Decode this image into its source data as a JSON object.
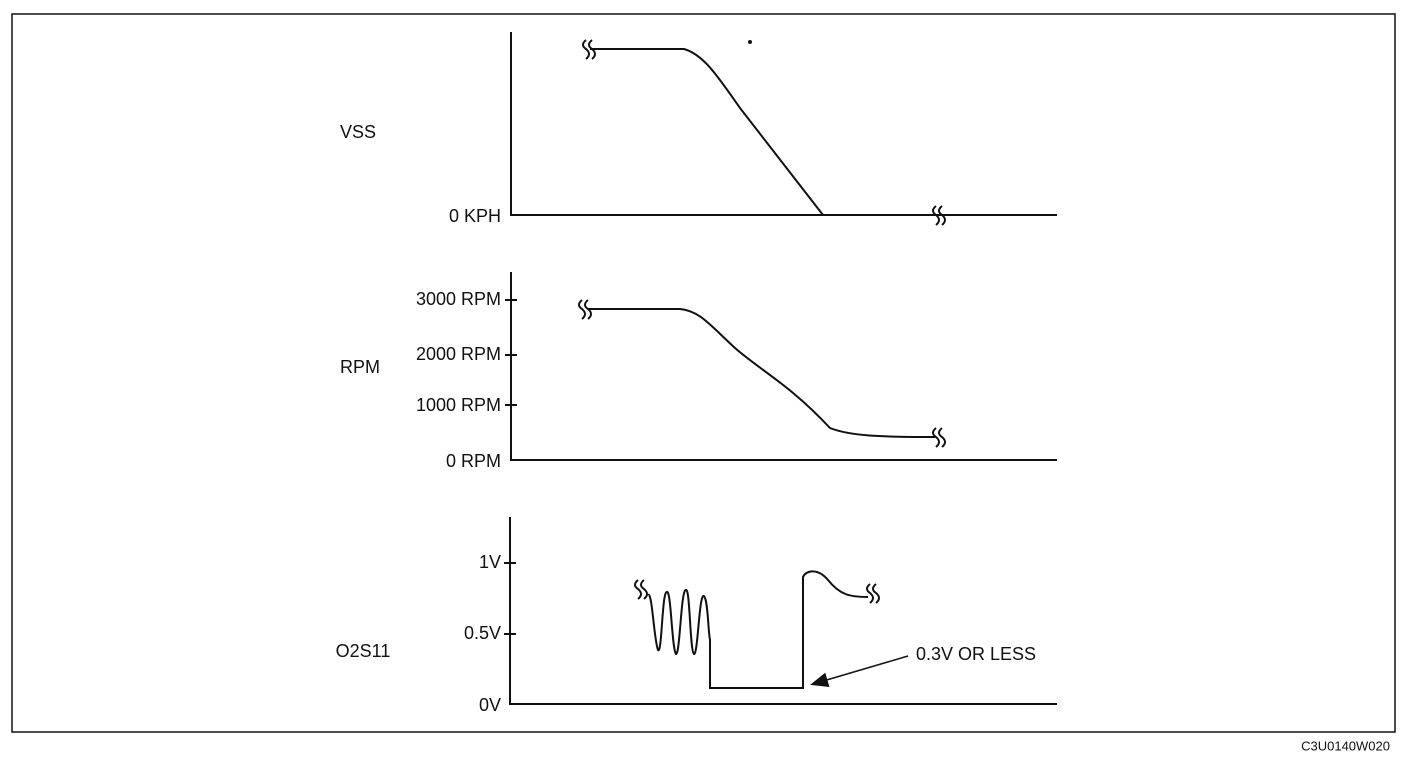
{
  "panels": [
    {
      "label": "VSS",
      "ticks": [
        "0 KPH"
      ]
    },
    {
      "label": "RPM",
      "ticks": [
        "3000 RPM",
        "2000 RPM",
        "1000 RPM",
        "0 RPM"
      ]
    },
    {
      "label": "O2S11",
      "ticks": [
        "1V",
        "0.5V",
        "0V"
      ]
    }
  ],
  "annotation": "0.3V OR LESS",
  "code": "C3U0140W020"
}
